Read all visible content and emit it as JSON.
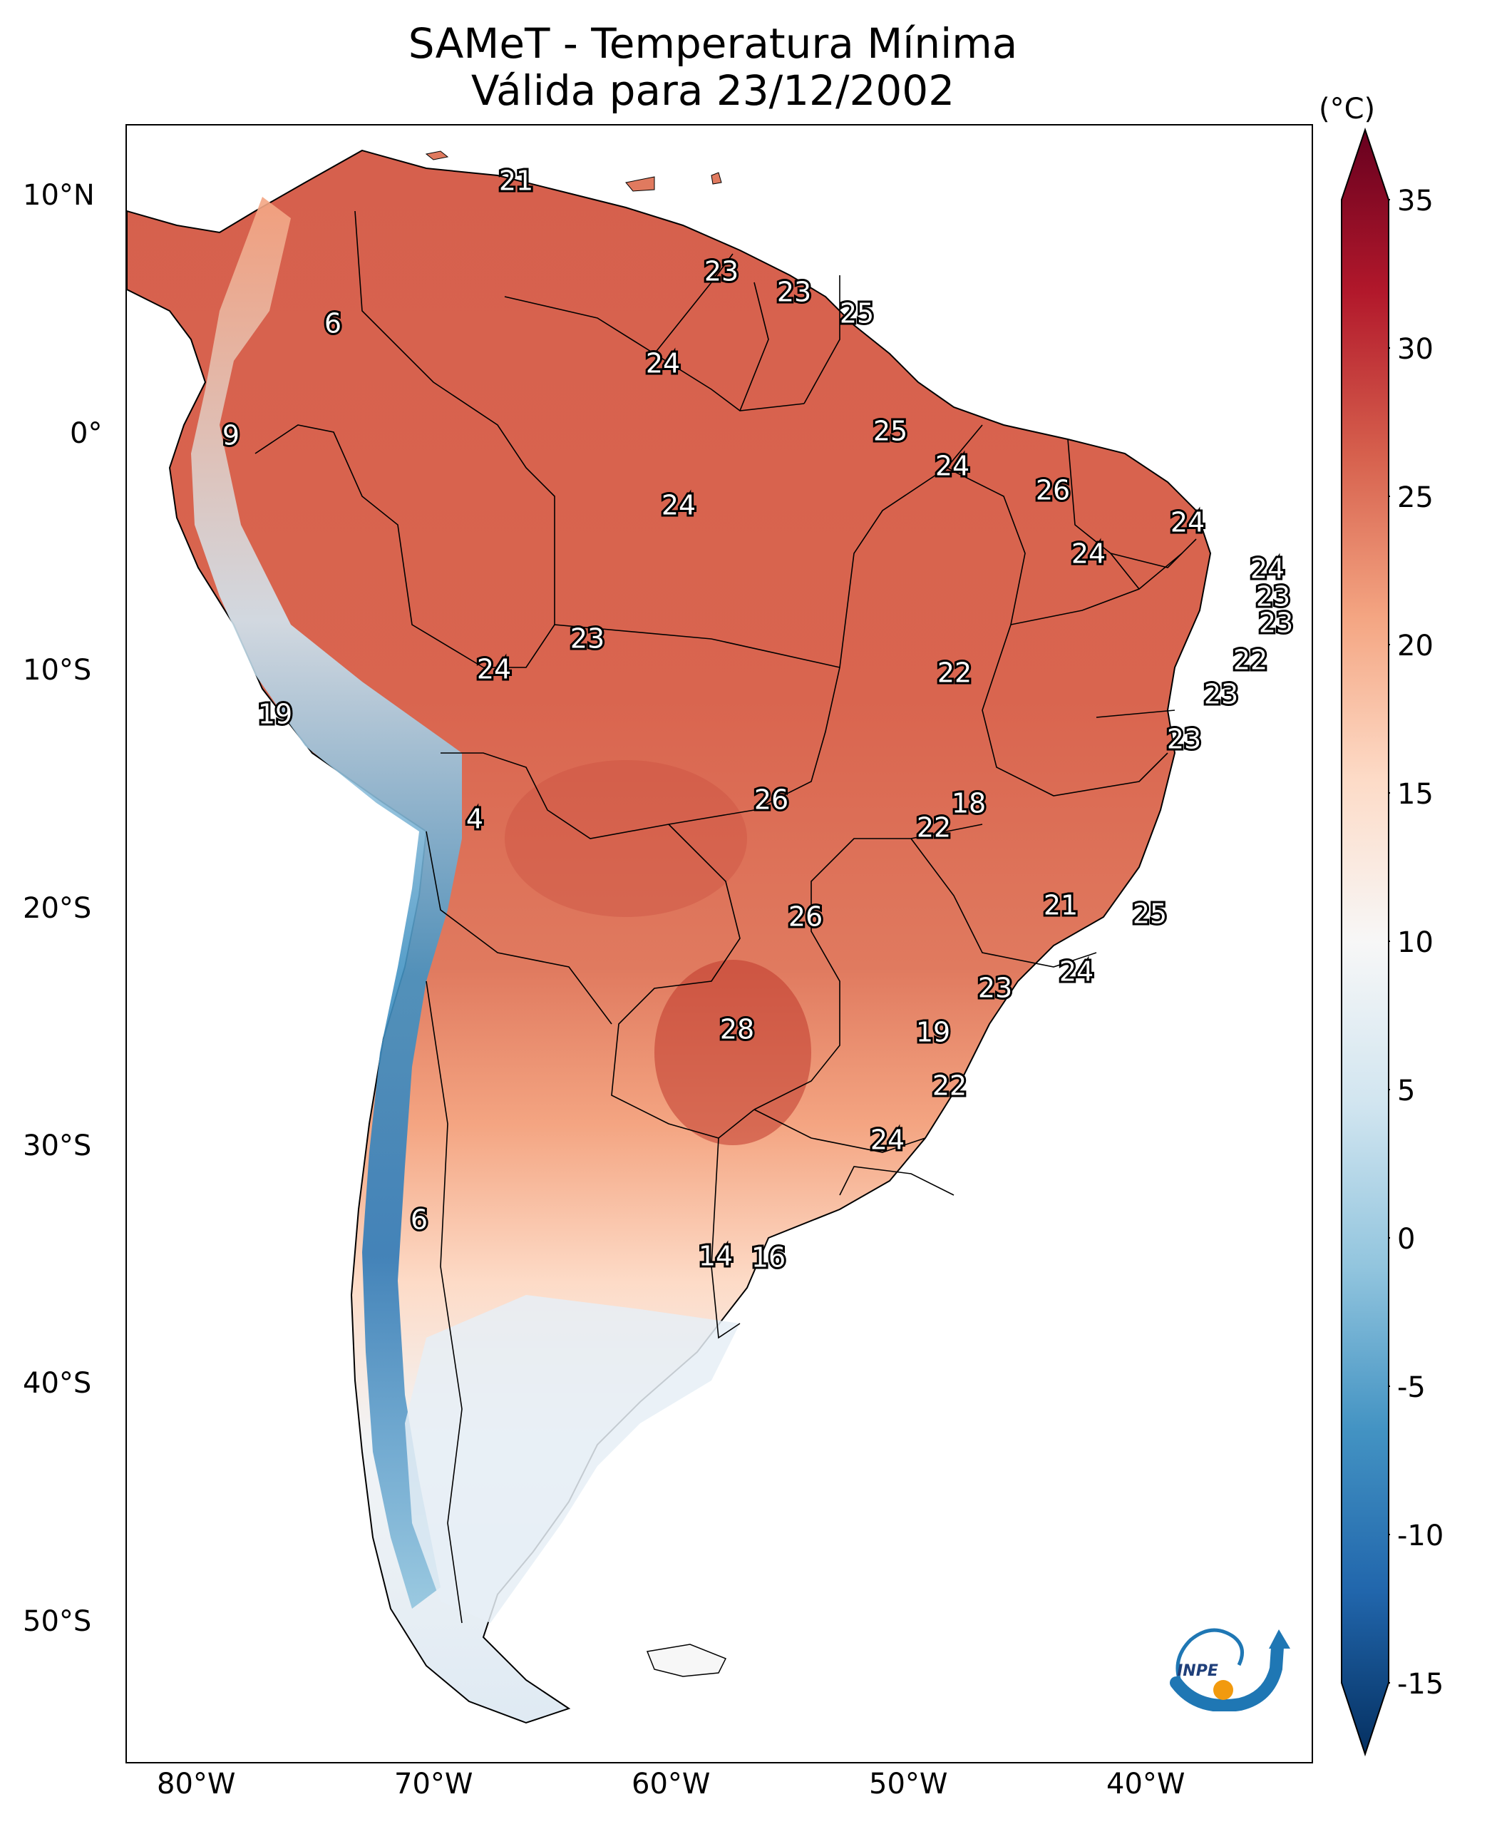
{
  "title": {
    "line1": "SAMeT - Temperatura Mínima",
    "line2": "Válida para 23/12/2002"
  },
  "axes": {
    "lat_labels": [
      "10°N",
      "0°",
      "10°S",
      "20°S",
      "30°S",
      "40°S",
      "50°S"
    ],
    "lon_labels": [
      "80°W",
      "70°W",
      "60°W",
      "50°W",
      "40°W"
    ]
  },
  "colorbar": {
    "unit": "(°C)",
    "ticks": [
      "35",
      "30",
      "25",
      "20",
      "15",
      "10",
      "5",
      "0",
      "-5",
      "-10",
      "-15"
    ],
    "colors": {
      "max": "#67001f",
      "hot": "#b2182b",
      "warm": "#d6604d",
      "mild": "#f4a582",
      "cool": "#fddbc7",
      "neutral": "#f7f7f7",
      "cold": "#d1e5f0",
      "colder": "#92c5de",
      "freezing": "#4393c3",
      "deep": "#2166ac",
      "min": "#053061"
    }
  },
  "values": [
    "21",
    "6",
    "23",
    "23",
    "25",
    "24",
    "9",
    "25",
    "24",
    "26",
    "24",
    "24",
    "24",
    "24",
    "23",
    "23",
    "23",
    "22",
    "22",
    "24",
    "19",
    "23",
    "23",
    "26",
    "18",
    "4",
    "22",
    "21",
    "25",
    "26",
    "24",
    "23",
    "28",
    "19",
    "22",
    "24",
    "6",
    "14",
    "16"
  ],
  "logo": {
    "text": "INPE",
    "arrow_color": "#1f77b4",
    "dot_color": "#f29a0e"
  }
}
